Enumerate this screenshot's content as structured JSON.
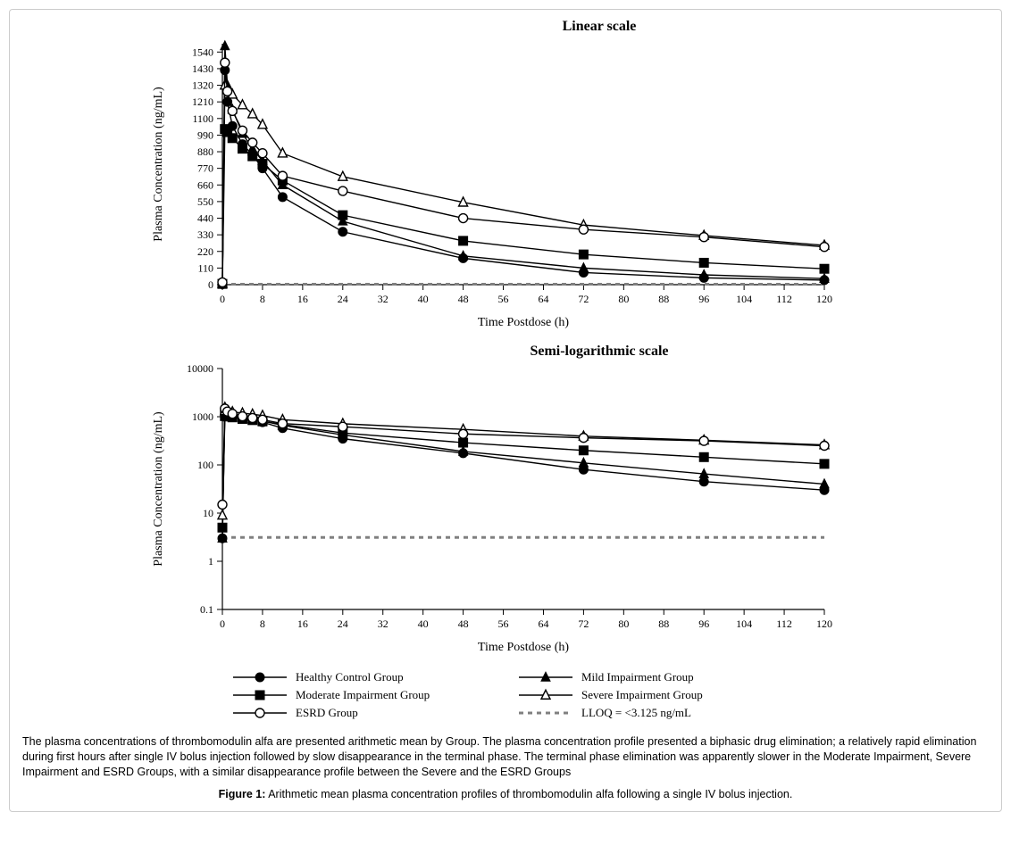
{
  "figure": {
    "caption_body": "The plasma concentrations of thrombomodulin alfa are presented arithmetic mean by Group. The plasma concentration profile presented a biphasic drug elimination; a relatively rapid elimination during first hours after single IV bolus injection followed by slow disappearance in the terminal phase. The terminal phase elimination was apparently slower in the Moderate Impairment, Severe Impairment and ESRD Groups, with a similar disappearance profile between the Severe and the ESRD Groups",
    "caption_label": "Figure 1:",
    "caption_fig_text": " Arithmetic mean plasma concentration profiles of thrombomodulin alfa following a single IV bolus injection."
  },
  "common": {
    "x_ticks": [
      0,
      8,
      16,
      24,
      32,
      40,
      48,
      56,
      64,
      72,
      80,
      88,
      96,
      104,
      112,
      120
    ],
    "xlim": [
      0,
      120
    ],
    "xlabel": "Time Postdose (h)",
    "ylabel": "Plasma Concentration (ng/mL)",
    "font_family": "Times New Roman",
    "axis_color": "#000000",
    "background": "#ffffff",
    "marker_size": 5,
    "line_width": 1.4,
    "series_color": "#000000",
    "lloq_color": "#808080",
    "lloq_dash": "5,5",
    "label_fontsize": 14,
    "tick_fontsize": 12,
    "title_fontsize": 16
  },
  "linear_chart": {
    "title": "Linear scale",
    "ylim": [
      0,
      1595
    ],
    "y_ticks": [
      0,
      110,
      220,
      330,
      440,
      550,
      660,
      770,
      880,
      990,
      1100,
      1210,
      1320,
      1430,
      1540
    ],
    "lloq_y": 3.125,
    "time": [
      0,
      0.5,
      1,
      2,
      4,
      6,
      8,
      12,
      24,
      48,
      72,
      96,
      120
    ],
    "series": [
      {
        "name": "Healthy Control Group",
        "marker": "circle_filled",
        "values": [
          3,
          1420,
          1210,
          1050,
          930,
          860,
          770,
          580,
          350,
          175,
          80,
          45,
          30
        ]
      },
      {
        "name": "Mild Impairment Group",
        "marker": "triangle_filled",
        "values": [
          3,
          1580,
          1320,
          1160,
          1000,
          900,
          820,
          660,
          420,
          190,
          110,
          65,
          40
        ]
      },
      {
        "name": "Moderate Impairment Group",
        "marker": "square_filled",
        "values": [
          5,
          1030,
          1010,
          970,
          900,
          850,
          800,
          690,
          460,
          290,
          200,
          145,
          105
        ]
      },
      {
        "name": "Severe Impairment Group",
        "marker": "triangle_open",
        "values": [
          9,
          1320,
          1290,
          1260,
          1190,
          1130,
          1060,
          870,
          715,
          545,
          395,
          325,
          260
        ]
      },
      {
        "name": "ESRD Group",
        "marker": "circle_open",
        "values": [
          15,
          1470,
          1280,
          1150,
          1020,
          940,
          870,
          720,
          620,
          440,
          365,
          315,
          250
        ]
      }
    ]
  },
  "log_chart": {
    "title": "Semi-logarithmic scale",
    "ylim_log": [
      -1,
      4
    ],
    "y_ticks_log": [
      -1,
      0,
      1,
      2,
      3,
      4
    ],
    "y_tick_labels": [
      "0.1",
      "1",
      "10",
      "100",
      "1000",
      "10000"
    ],
    "lloq_y": 3.125,
    "time": [
      0,
      0.5,
      1,
      2,
      4,
      6,
      8,
      12,
      24,
      48,
      72,
      96,
      120
    ],
    "series": [
      {
        "name": "Healthy Control Group",
        "marker": "circle_filled",
        "values": [
          3,
          1420,
          1210,
          1050,
          930,
          860,
          770,
          580,
          350,
          175,
          80,
          45,
          30
        ]
      },
      {
        "name": "Mild Impairment Group",
        "marker": "triangle_filled",
        "values": [
          3,
          1580,
          1320,
          1160,
          1000,
          900,
          820,
          660,
          420,
          190,
          110,
          65,
          40
        ]
      },
      {
        "name": "Moderate Impairment Group",
        "marker": "square_filled",
        "values": [
          5,
          1030,
          1010,
          970,
          900,
          850,
          800,
          690,
          460,
          290,
          200,
          145,
          105
        ]
      },
      {
        "name": "Severe Impairment Group",
        "marker": "triangle_open",
        "values": [
          9,
          1320,
          1290,
          1260,
          1190,
          1130,
          1060,
          870,
          715,
          545,
          395,
          325,
          260
        ]
      },
      {
        "name": "ESRD Group",
        "marker": "circle_open",
        "values": [
          15,
          1470,
          1280,
          1150,
          1020,
          940,
          870,
          720,
          620,
          440,
          365,
          315,
          250
        ]
      }
    ]
  },
  "legend": {
    "items": [
      {
        "label": "Healthy Control Group",
        "marker": "circle_filled"
      },
      {
        "label": "Mild Impairment Group",
        "marker": "triangle_filled"
      },
      {
        "label": "Moderate Impairment Group",
        "marker": "square_filled"
      },
      {
        "label": "Severe Impairment Group",
        "marker": "triangle_open"
      },
      {
        "label": "ESRD Group",
        "marker": "circle_open"
      },
      {
        "label": "LLOQ = <3.125 ng/mL",
        "marker": "lloq"
      }
    ]
  }
}
